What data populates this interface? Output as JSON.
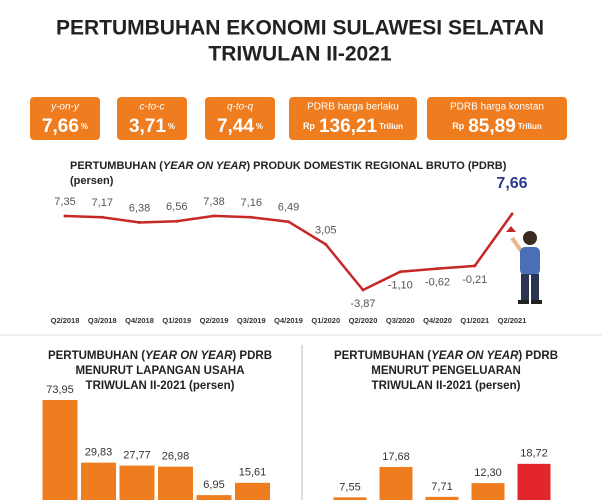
{
  "header": {
    "title_lines": [
      "PERTUMBUHAN EKONOMI SULAWESI SELATAN",
      "TRIWULAN II-2021"
    ]
  },
  "stats": [
    {
      "label": "y-on-y",
      "value": "7,66",
      "unit": "%"
    },
    {
      "label": "c-to-c",
      "value": "3,71",
      "unit": "%"
    },
    {
      "label": "q-to-q",
      "value": "7,44",
      "unit": "%"
    },
    {
      "label": "PDRB harga berlaku",
      "prefix": "Rp",
      "value": "136,21",
      "unit": "Triliun"
    },
    {
      "label": "PDRB harga konstan",
      "prefix": "Rp",
      "value": "85,89",
      "unit": "Triliun"
    }
  ],
  "chart_data": [
    {
      "type": "line",
      "title": [
        "PERTUMBUHAN (",
        "YEAR ON YEAR",
        ") PRODUK DOMESTIK REGIONAL BRUTO (PDRB)"
      ],
      "subtitle": "(persen)",
      "categories": [
        "Q2/2018",
        "Q3/2018",
        "Q4/2018",
        "Q1/2019",
        "Q2/2019",
        "Q3/2019",
        "Q4/2019",
        "Q1/2020",
        "Q2/2020",
        "Q3/2020",
        "Q4/2020",
        "Q1/2021",
        "Q2/2021"
      ],
      "values": [
        7.35,
        7.17,
        6.38,
        6.56,
        7.38,
        7.16,
        6.49,
        3.05,
        -3.87,
        -1.1,
        -0.62,
        -0.21,
        7.66
      ],
      "value_labels": [
        "7,35",
        "7,17",
        "6,38",
        "6,56",
        "7,38",
        "7,16",
        "6,49",
        "3,05",
        "-3,87",
        "-1,10",
        "-0,62",
        "-0,21",
        "7,66"
      ],
      "color": "#c62828"
    },
    {
      "type": "bar",
      "title": [
        [
          "PERTUMBUHAN (",
          "YEAR ON YEAR",
          ") PDRB"
        ],
        "MENURUT LAPANGAN USAHA",
        "TRIWULAN II-2021 (persen)"
      ],
      "categories": [
        null,
        null,
        null,
        null,
        null,
        null
      ],
      "values": [
        73.95,
        29.83,
        27.77,
        26.98,
        6.95,
        15.61
      ],
      "value_labels": [
        "73,95",
        "29,83",
        "27,77",
        "26,98",
        "6,95",
        "15,61"
      ],
      "colors": [
        "#ef7d1f",
        "#ef7d1f",
        "#ef7d1f",
        "#ef7d1f",
        "#ef7d1f",
        "#ef7d1f"
      ]
    },
    {
      "type": "bar",
      "title": [
        [
          "PERTUMBUHAN (",
          "YEAR ON YEAR",
          ") PDRB"
        ],
        "MENURUT PENGELUARAN",
        "TRIWULAN II-2021 (persen)"
      ],
      "categories": [
        null,
        null,
        null,
        null,
        null
      ],
      "values": [
        7.55,
        17.68,
        7.71,
        12.3,
        18.72
      ],
      "value_labels": [
        "7,55",
        "17,68",
        "7,71",
        "12,30",
        "18,72"
      ],
      "colors": [
        "#ef7d1f",
        "#ef7d1f",
        "#ef7d1f",
        "#ef7d1f",
        "#e3262b"
      ]
    }
  ]
}
